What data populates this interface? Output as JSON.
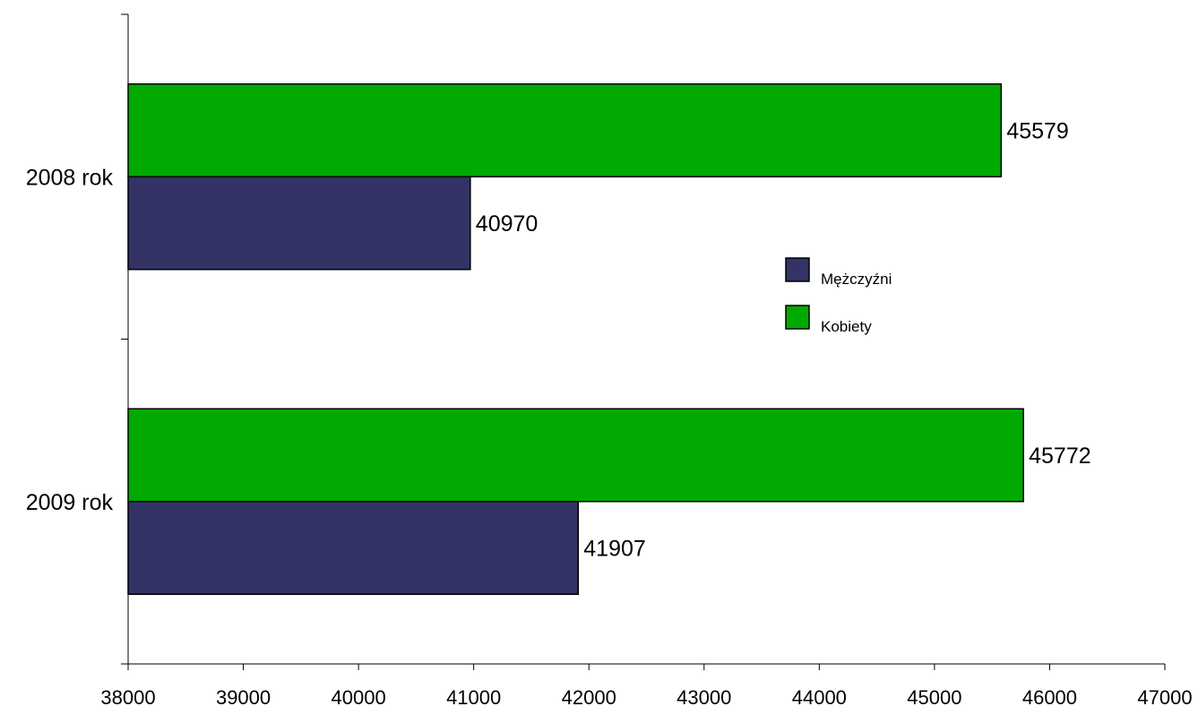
{
  "chart_data": {
    "type": "bar",
    "orientation": "horizontal",
    "categories": [
      "2008 rok",
      "2009 rok"
    ],
    "series": [
      {
        "name": "Mężczyźni",
        "values": [
          40970,
          41907
        ],
        "color": "#333366"
      },
      {
        "name": "Kobiety",
        "values": [
          45579,
          45772
        ],
        "color": "#00AA00"
      }
    ],
    "xlim": [
      38000,
      47000
    ],
    "xticks": [
      38000,
      39000,
      40000,
      41000,
      42000,
      43000,
      44000,
      45000,
      46000,
      47000
    ],
    "data_labels": true,
    "legend": {
      "placement": "center-right",
      "order": [
        "Mężczyźni",
        "Kobiety"
      ]
    },
    "grid": false
  }
}
